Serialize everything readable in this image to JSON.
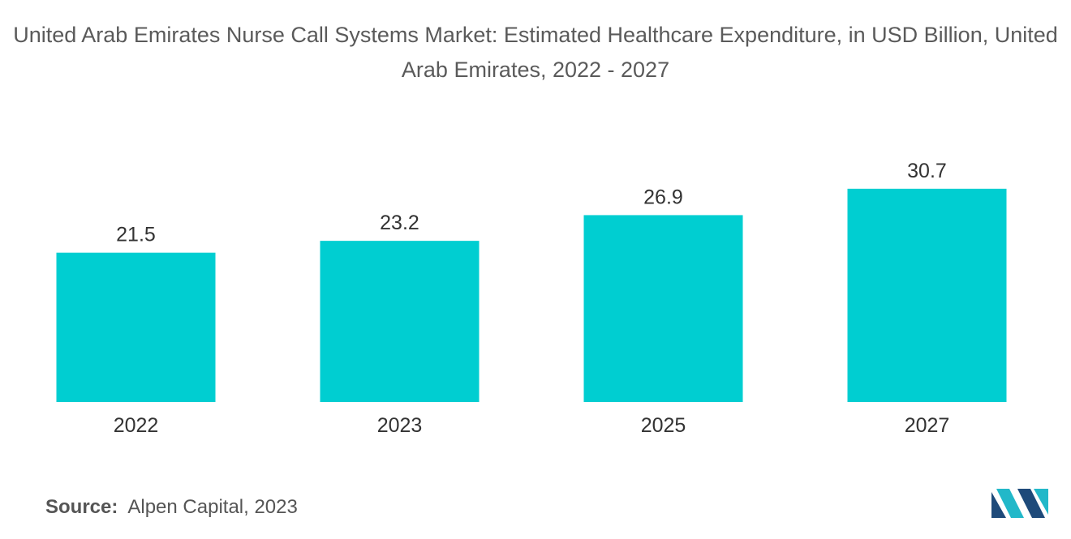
{
  "chart_data": {
    "type": "bar",
    "title": "United Arab Emirates Nurse Call Systems Market: Estimated Healthcare Expenditure, in USD Billion, United Arab Emirates, 2022 - 2027",
    "categories": [
      "2022",
      "2023",
      "2025",
      "2027"
    ],
    "values": [
      21.5,
      23.2,
      26.9,
      30.7
    ],
    "value_labels": [
      "21.5",
      "23.2",
      "26.9",
      "30.7"
    ],
    "xlabel": "",
    "ylabel": "",
    "ylim": [
      0,
      35
    ],
    "grid": false,
    "legend": "none",
    "bar_color": "#00ced1"
  },
  "source": {
    "label": "Source:",
    "text": "Alpen Capital, 2023"
  },
  "logo": {
    "icon": "mordor-intelligence-logo-icon",
    "colors": [
      "#1e4a7a",
      "#22b8c9"
    ]
  }
}
